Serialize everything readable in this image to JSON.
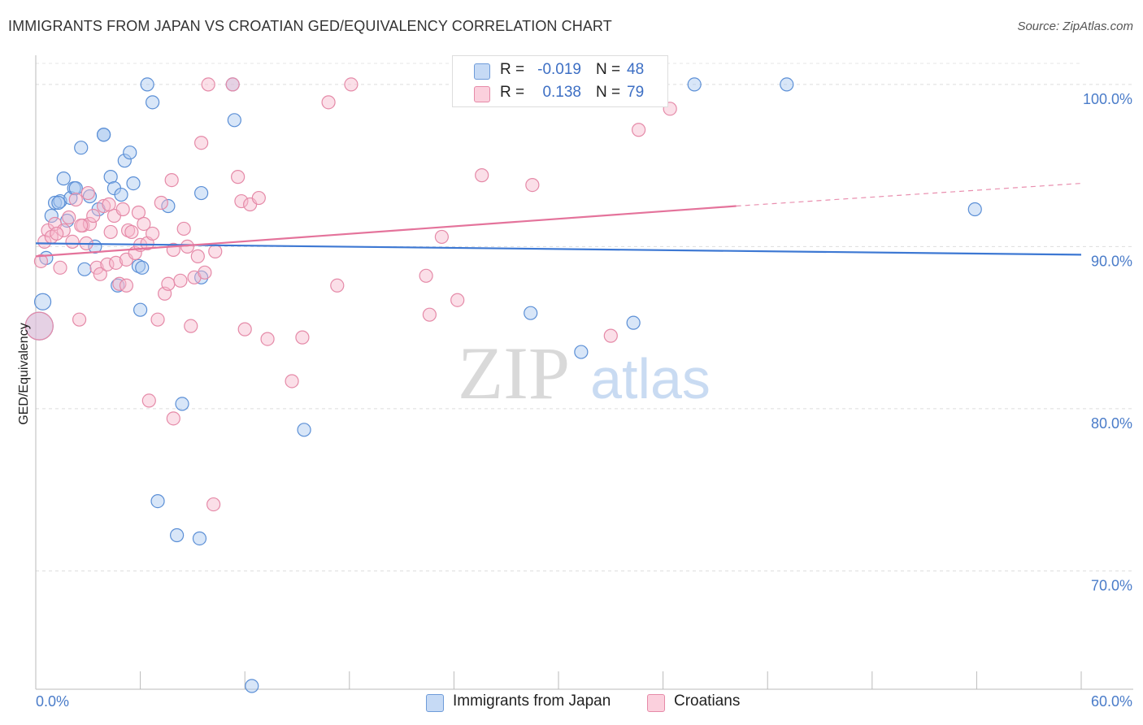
{
  "title": "IMMIGRANTS FROM JAPAN VS CROATIAN GED/EQUIVALENCY CORRELATION CHART",
  "source": "Source: ZipAtlas.com",
  "watermark": {
    "zip": "ZIP",
    "atlas": "atlas"
  },
  "stats": [
    {
      "r_label": "R =",
      "r_value": "-0.019",
      "n_label": "N =",
      "n_value": "48",
      "color": "#a9c8f0"
    },
    {
      "r_label": "R =",
      "r_value": "0.138",
      "n_label": "N =",
      "n_value": "79",
      "color": "#f7b8cb"
    }
  ],
  "legend": [
    {
      "label": "Immigrants from Japan",
      "color": "#a9c8f0"
    },
    {
      "label": "Croatians",
      "color": "#f7b8cb"
    }
  ],
  "chart_data": {
    "type": "scatter",
    "title": "IMMIGRANTS FROM JAPAN VS CROATIAN GED/EQUIVALENCY CORRELATION CHART",
    "xlabel": "",
    "ylabel": "GED/Equivalency",
    "xlim": [
      0,
      60
    ],
    "ylim": [
      62.7,
      101.8
    ],
    "x_tick_labels": [
      {
        "value": 0,
        "label": "0.0%"
      },
      {
        "value": 60,
        "label": "60.0%"
      }
    ],
    "y_tick_labels": [
      {
        "value": 100,
        "label": "100.0%"
      },
      {
        "value": 90,
        "label": "90.0%"
      },
      {
        "value": 80,
        "label": "80.0%"
      },
      {
        "value": 70,
        "label": "70.0%"
      }
    ],
    "y_gridlines": [
      100,
      90,
      80,
      70
    ],
    "grid": true,
    "legend_position": "bottom-center",
    "series": [
      {
        "name": "Immigrants from Japan",
        "color": "#a9c8f0",
        "stroke": "#5b8fd6",
        "trend_color": "#3d78d3",
        "trend": {
          "x": [
            0,
            60
          ],
          "y": [
            90.2,
            89.5
          ]
        },
        "trend_dashed": null,
        "points": [
          [
            0.2,
            85.1,
            34
          ],
          [
            0.4,
            86.6,
            20
          ],
          [
            0.6,
            89.3,
            16
          ],
          [
            0.9,
            91.9,
            16
          ],
          [
            1.1,
            92.7,
            16
          ],
          [
            1.4,
            92.8,
            16
          ],
          [
            1.6,
            94.2,
            16
          ],
          [
            1.8,
            91.6,
            16
          ],
          [
            2.0,
            93.0,
            16
          ],
          [
            2.2,
            93.6,
            16
          ],
          [
            2.6,
            96.1,
            16
          ],
          [
            2.8,
            88.6,
            16
          ],
          [
            3.1,
            93.1,
            16
          ],
          [
            3.4,
            90.0,
            16
          ],
          [
            3.6,
            92.3,
            16
          ],
          [
            3.9,
            96.9,
            16
          ],
          [
            4.3,
            94.3,
            16
          ],
          [
            4.5,
            93.6,
            16
          ],
          [
            4.7,
            87.6,
            16
          ],
          [
            4.9,
            93.2,
            16
          ],
          [
            5.1,
            95.3,
            16
          ],
          [
            5.4,
            95.8,
            16
          ],
          [
            5.6,
            93.9,
            16
          ],
          [
            5.9,
            88.8,
            16
          ],
          [
            6.0,
            86.1,
            16
          ],
          [
            6.1,
            88.7,
            16
          ],
          [
            6.4,
            100.0,
            16
          ],
          [
            6.7,
            98.9,
            16
          ],
          [
            7.0,
            74.3,
            16
          ],
          [
            7.6,
            92.5,
            16
          ],
          [
            8.1,
            72.2,
            16
          ],
          [
            8.4,
            80.3,
            16
          ],
          [
            9.4,
            72.0,
            16
          ],
          [
            9.5,
            93.3,
            16
          ],
          [
            11.3,
            100.0,
            16
          ],
          [
            11.4,
            97.8,
            16
          ],
          [
            12.4,
            62.9,
            16
          ],
          [
            15.4,
            78.7,
            16
          ],
          [
            28.4,
            85.9,
            16
          ],
          [
            31.3,
            83.5,
            16
          ],
          [
            34.3,
            85.3,
            16
          ],
          [
            37.8,
            100.0,
            16
          ],
          [
            43.1,
            100.0,
            16
          ],
          [
            53.9,
            92.3,
            16
          ],
          [
            3.9,
            96.9,
            16
          ],
          [
            1.3,
            92.7,
            16
          ],
          [
            2.3,
            93.6,
            16
          ],
          [
            9.5,
            88.1,
            16
          ]
        ]
      },
      {
        "name": "Croatians",
        "color": "#f7b8cb",
        "stroke": "#e58aa8",
        "trend_color": "#e4739b",
        "trend": {
          "x": [
            0,
            40.2
          ],
          "y": [
            89.4,
            92.5
          ]
        },
        "trend_dashed": {
          "x": [
            40.2,
            60
          ],
          "y": [
            92.5,
            93.9
          ]
        },
        "points": [
          [
            0.2,
            85.1,
            34
          ],
          [
            0.3,
            89.1,
            16
          ],
          [
            0.5,
            90.3,
            16
          ],
          [
            0.7,
            91.0,
            16
          ],
          [
            0.9,
            90.6,
            16
          ],
          [
            1.1,
            91.4,
            16
          ],
          [
            1.4,
            88.7,
            16
          ],
          [
            1.6,
            91.0,
            16
          ],
          [
            1.9,
            91.8,
            16
          ],
          [
            2.1,
            90.3,
            16
          ],
          [
            2.3,
            92.9,
            16
          ],
          [
            2.5,
            85.5,
            16
          ],
          [
            2.7,
            91.3,
            16
          ],
          [
            2.9,
            90.2,
            16
          ],
          [
            3.1,
            91.4,
            16
          ],
          [
            3.3,
            91.9,
            16
          ],
          [
            3.5,
            88.7,
            16
          ],
          [
            3.7,
            88.3,
            16
          ],
          [
            3.9,
            92.5,
            16
          ],
          [
            4.1,
            88.9,
            16
          ],
          [
            4.3,
            90.9,
            16
          ],
          [
            4.5,
            91.9,
            16
          ],
          [
            4.6,
            89.0,
            16
          ],
          [
            4.8,
            87.7,
            16
          ],
          [
            5.0,
            92.3,
            16
          ],
          [
            5.2,
            89.2,
            16
          ],
          [
            5.3,
            91.0,
            16
          ],
          [
            5.5,
            90.9,
            16
          ],
          [
            5.7,
            89.6,
            16
          ],
          [
            5.9,
            92.1,
            16
          ],
          [
            6.0,
            90.1,
            16
          ],
          [
            6.2,
            91.4,
            16
          ],
          [
            6.4,
            90.2,
            16
          ],
          [
            6.5,
            80.5,
            16
          ],
          [
            6.7,
            90.8,
            16
          ],
          [
            7.0,
            85.5,
            16
          ],
          [
            7.2,
            92.7,
            16
          ],
          [
            7.4,
            87.1,
            16
          ],
          [
            7.6,
            87.7,
            16
          ],
          [
            7.8,
            94.1,
            16
          ],
          [
            7.9,
            89.8,
            16
          ],
          [
            8.3,
            87.9,
            16
          ],
          [
            8.5,
            91.1,
            16
          ],
          [
            8.7,
            90.0,
            16
          ],
          [
            8.9,
            85.1,
            16
          ],
          [
            9.1,
            88.1,
            16
          ],
          [
            9.3,
            89.4,
            16
          ],
          [
            9.7,
            88.4,
            16
          ],
          [
            9.9,
            100.0,
            16
          ],
          [
            10.2,
            74.1,
            16
          ],
          [
            11.3,
            100.0,
            16
          ],
          [
            11.6,
            94.3,
            16
          ],
          [
            11.8,
            92.8,
            16
          ],
          [
            12.0,
            84.9,
            16
          ],
          [
            12.3,
            92.6,
            16
          ],
          [
            12.8,
            93.0,
            16
          ],
          [
            13.3,
            84.3,
            16
          ],
          [
            14.7,
            81.7,
            16
          ],
          [
            15.3,
            84.4,
            16
          ],
          [
            16.8,
            98.9,
            16
          ],
          [
            17.3,
            87.6,
            16
          ],
          [
            18.1,
            100.0,
            16
          ],
          [
            22.4,
            88.2,
            16
          ],
          [
            22.6,
            85.8,
            16
          ],
          [
            23.3,
            90.6,
            16
          ],
          [
            24.2,
            86.7,
            16
          ],
          [
            25.6,
            94.4,
            16
          ],
          [
            28.5,
            93.8,
            16
          ],
          [
            33.0,
            84.5,
            16
          ],
          [
            34.6,
            97.2,
            16
          ],
          [
            36.4,
            98.5,
            16
          ],
          [
            9.5,
            96.4,
            16
          ],
          [
            7.9,
            79.4,
            16
          ],
          [
            5.2,
            87.6,
            16
          ],
          [
            4.2,
            92.6,
            16
          ],
          [
            3.0,
            93.3,
            16
          ],
          [
            1.2,
            90.8,
            16
          ],
          [
            2.6,
            91.3,
            16
          ],
          [
            10.3,
            89.7,
            16
          ]
        ]
      }
    ]
  }
}
